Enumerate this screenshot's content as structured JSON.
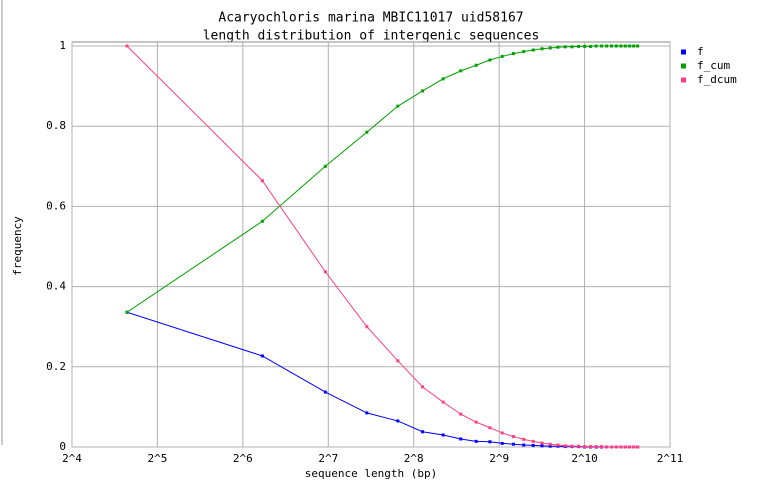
{
  "chart_data": {
    "type": "line",
    "title": "Acaryochloris marina MBIC11017 uid58167",
    "subtitle": "length distribution of intergenic sequences",
    "x_label": "sequence length (bp)",
    "y_label": "frequency",
    "x_scale": "log2",
    "x": [
      25,
      75,
      125,
      175,
      225,
      275,
      325,
      375,
      425,
      475,
      525,
      575,
      625,
      675,
      725,
      775,
      825,
      875,
      925,
      975,
      1025,
      1075,
      1125,
      1175,
      1225,
      1275,
      1325,
      1375,
      1425,
      1475,
      1525,
      1575
    ],
    "series": [
      {
        "name": "f",
        "color": "#0000ff",
        "values": [
          0.336,
          0.227,
          0.137,
          0.085,
          0.065,
          0.038,
          0.03,
          0.02,
          0.014,
          0.013,
          0.009,
          0.007,
          0.005,
          0.004,
          0.003,
          0.002,
          0.002,
          0.001,
          0.001,
          0.001,
          0,
          0,
          0,
          0,
          0,
          0,
          0,
          0,
          0,
          0,
          0,
          0
        ]
      },
      {
        "name": "f_cum",
        "color": "#00a000",
        "values": [
          0.336,
          0.563,
          0.7,
          0.785,
          0.85,
          0.888,
          0.918,
          0.938,
          0.952,
          0.965,
          0.974,
          0.981,
          0.986,
          0.99,
          0.993,
          0.995,
          0.997,
          0.998,
          0.998,
          0.999,
          0.999,
          0.999,
          1,
          1,
          1,
          1,
          1,
          1,
          1,
          1,
          1,
          1
        ]
      },
      {
        "name": "f_dcum",
        "color": "#ff4080",
        "values": [
          1,
          0.664,
          0.437,
          0.3,
          0.215,
          0.15,
          0.112,
          0.082,
          0.062,
          0.048,
          0.035,
          0.026,
          0.019,
          0.014,
          0.01,
          0.007,
          0.005,
          0.003,
          0.002,
          0.002,
          0.001,
          0.001,
          0.001,
          0.001,
          0,
          0,
          0,
          0,
          0,
          0,
          0,
          0
        ]
      }
    ],
    "xlim": [
      16,
      2048
    ],
    "xticks": [
      {
        "value": 16,
        "label": "2^4"
      },
      {
        "value": 32,
        "label": "2^5"
      },
      {
        "value": 64,
        "label": "2^6"
      },
      {
        "value": 128,
        "label": "2^7"
      },
      {
        "value": 256,
        "label": "2^8"
      },
      {
        "value": 512,
        "label": "2^9"
      },
      {
        "value": 1024,
        "label": "2^10"
      },
      {
        "value": 2048,
        "label": "2^11"
      }
    ],
    "ylim": [
      0,
      1
    ],
    "yticks": [
      0,
      0.2,
      0.4,
      0.6,
      0.8,
      1
    ],
    "grid": true,
    "legend": "right"
  }
}
